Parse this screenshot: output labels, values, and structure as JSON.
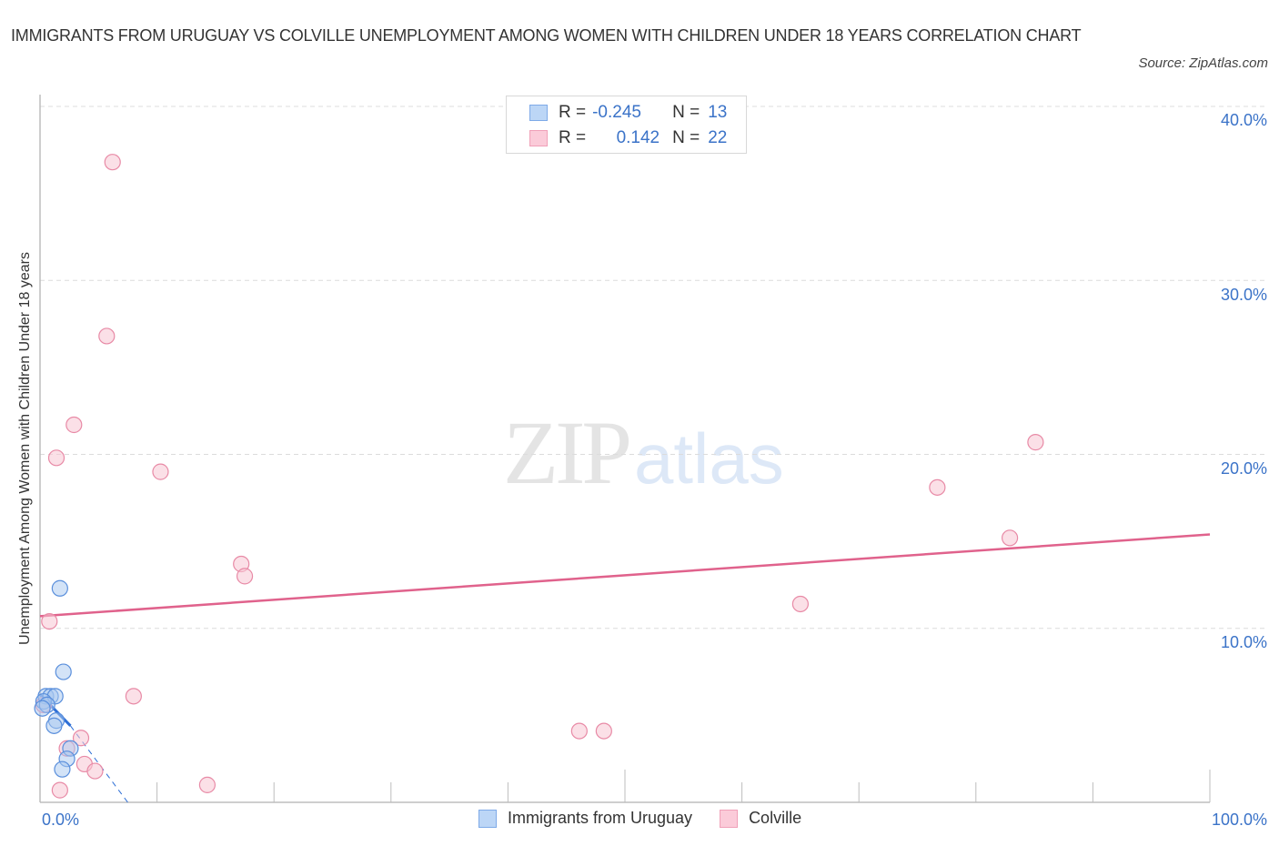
{
  "header": {
    "title": "IMMIGRANTS FROM URUGUAY VS COLVILLE UNEMPLOYMENT AMONG WOMEN WITH CHILDREN UNDER 18 YEARS CORRELATION CHART",
    "source": "Source: ZipAtlas.com"
  },
  "watermark": {
    "zip": "ZIP",
    "atlas": "atlas"
  },
  "legend_stats": {
    "series1": {
      "r_label": "R =",
      "r_value": "-0.245",
      "n_label": "N =",
      "n_value": "13",
      "color": "#a8c8f0"
    },
    "series2": {
      "r_label": "R =",
      "r_value": "0.142",
      "n_label": "N =",
      "n_value": "22",
      "color": "#f7b8cb"
    }
  },
  "axes": {
    "ylabel": "Unemployment Among Women with Children Under 18 years",
    "y_ticks": [
      "40.0%",
      "30.0%",
      "20.0%",
      "10.0%"
    ],
    "x_min_label": "0.0%",
    "x_max_label": "100.0%"
  },
  "bottom_legend": {
    "items": [
      {
        "label": "Immigrants from Uruguay",
        "color": "#a8c8f0"
      },
      {
        "label": "Colville",
        "color": "#f7b8cb"
      }
    ]
  },
  "colors": {
    "accent_blue": "#3b73c8",
    "uruguay_fill": "#a8c8f0",
    "uruguay_stroke": "#5a8fdc",
    "uruguay_trend": "#2e6fd6",
    "colville_fill": "#f7c6d4",
    "colville_stroke": "#e88aa6",
    "colville_trend": "#e0628c"
  },
  "chart_data": {
    "type": "scatter",
    "title": "Immigrants from Uruguay vs Colville Unemployment Among Women with Children Under 18 years Correlation Chart",
    "xlabel": "",
    "ylabel": "Unemployment Among Women with Children Under 18 years",
    "xlim": [
      0,
      100
    ],
    "ylim": [
      0,
      40
    ],
    "x_unit": "%",
    "y_unit": "%",
    "y_ticks": [
      10,
      20,
      30,
      40
    ],
    "grid": "horizontal dashed",
    "legend_position": "bottom-center",
    "series": [
      {
        "name": "Immigrants from Uruguay",
        "R": -0.245,
        "N": 13,
        "points": [
          [
            1.7,
            12.3
          ],
          [
            2.0,
            7.5
          ],
          [
            0.5,
            6.1
          ],
          [
            0.9,
            6.1
          ],
          [
            1.3,
            6.1
          ],
          [
            0.3,
            5.8
          ],
          [
            0.6,
            5.6
          ],
          [
            0.2,
            5.4
          ],
          [
            1.4,
            4.7
          ],
          [
            1.2,
            4.4
          ],
          [
            2.6,
            3.1
          ],
          [
            2.3,
            2.5
          ],
          [
            1.9,
            1.9
          ]
        ],
        "trendline": {
          "x": [
            0,
            2.6
          ],
          "y": [
            6.2,
            4.4
          ],
          "extended_dashed_to": [
            7.5,
            0
          ]
        }
      },
      {
        "name": "Colville",
        "R": 0.142,
        "N": 22,
        "points": [
          [
            6.2,
            36.8
          ],
          [
            5.7,
            26.8
          ],
          [
            2.9,
            21.7
          ],
          [
            1.4,
            19.8
          ],
          [
            10.3,
            19.0
          ],
          [
            17.2,
            13.7
          ],
          [
            17.5,
            13.0
          ],
          [
            0.8,
            10.4
          ],
          [
            8.0,
            6.1
          ],
          [
            0.3,
            5.6
          ],
          [
            3.5,
            3.7
          ],
          [
            2.3,
            3.1
          ],
          [
            3.8,
            2.2
          ],
          [
            4.7,
            1.8
          ],
          [
            1.7,
            0.7
          ],
          [
            14.3,
            1.0
          ],
          [
            46.1,
            4.1
          ],
          [
            48.2,
            4.1
          ],
          [
            65.0,
            11.4
          ],
          [
            76.7,
            18.1
          ],
          [
            82.9,
            15.2
          ],
          [
            85.1,
            20.7
          ]
        ],
        "trendline": {
          "x": [
            0,
            100
          ],
          "y": [
            10.7,
            15.4
          ]
        }
      }
    ]
  }
}
